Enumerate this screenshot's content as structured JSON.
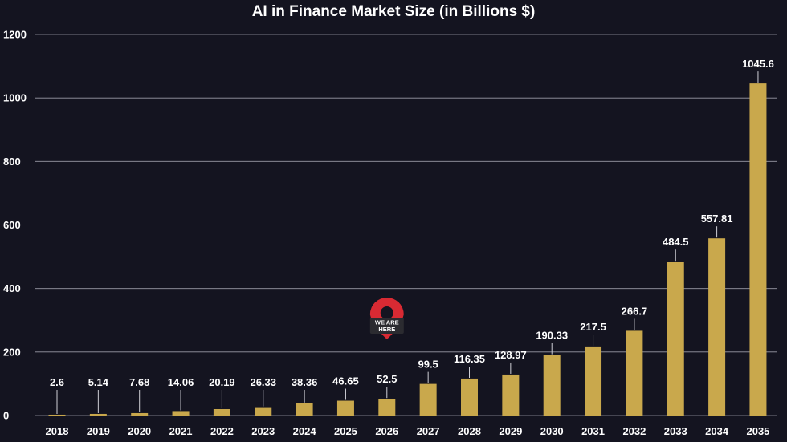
{
  "chart_data": {
    "type": "bar",
    "title": "AI in Finance Market Size (in Billions $)",
    "xlabel": "",
    "ylabel": "",
    "categories": [
      "2018",
      "2019",
      "2020",
      "2021",
      "2022",
      "2023",
      "2024",
      "2025",
      "2026",
      "2027",
      "2028",
      "2029",
      "2030",
      "2031",
      "2032",
      "2033",
      "2034",
      "2035"
    ],
    "values": [
      2.6,
      5.14,
      7.68,
      14.06,
      20.19,
      26.33,
      38.36,
      46.65,
      52.5,
      99.5,
      116.35,
      128.97,
      190.33,
      217.5,
      266.7,
      484.5,
      557.81,
      1045.6
    ],
    "value_labels": [
      "2.6",
      "5.14",
      "7.68",
      "14.06",
      "20.19",
      "26.33",
      "38.36",
      "46.65",
      "52.5",
      "99.5",
      "116.35",
      "128.97",
      "190.33",
      "217.5",
      "266.7",
      "484.5",
      "557.81",
      "1045.6"
    ],
    "ylim": [
      0,
      1200
    ],
    "yticks": [
      0,
      200,
      400,
      600,
      800,
      1000,
      1200
    ],
    "grid": true,
    "legend": "none",
    "bar_color": "#c9a84c",
    "background": "#141420",
    "marker": {
      "label_line1": "WE ARE",
      "label_line2": "HERE",
      "category": "2026",
      "color": "#d82a33"
    }
  }
}
